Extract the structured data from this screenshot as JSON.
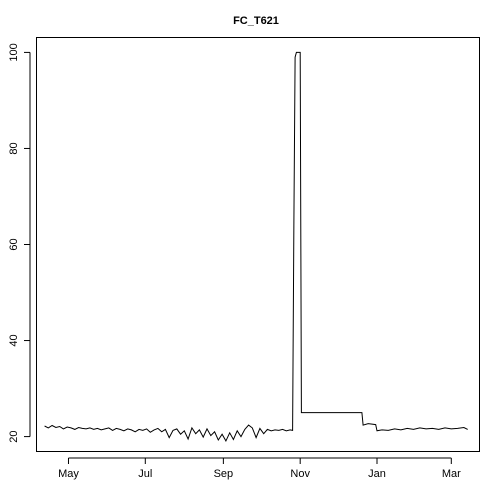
{
  "chart_data": {
    "type": "line",
    "title": "FC_T621",
    "xlabel": "",
    "ylabel": "",
    "x_type": "date",
    "xlim": [
      "2012-04-06",
      "2013-03-23"
    ],
    "ylim": [
      17.0,
      103.0
    ],
    "x_ticks": [
      {
        "date": "2012-05-01",
        "label": "May"
      },
      {
        "date": "2012-07-01",
        "label": "Jul"
      },
      {
        "date": "2012-09-01",
        "label": "Sep"
      },
      {
        "date": "2012-11-01",
        "label": "Nov"
      },
      {
        "date": "2013-01-01",
        "label": "Jan"
      },
      {
        "date": "2013-03-01",
        "label": "Mar"
      }
    ],
    "y_ticks": [
      20,
      40,
      60,
      80,
      100
    ],
    "grid": false,
    "legend": "none",
    "line_color": "#000000",
    "series": [
      {
        "x": [
          "2012-04-12",
          "2012-04-15",
          "2012-04-18",
          "2012-04-21",
          "2012-04-24",
          "2012-04-27",
          "2012-04-30",
          "2012-05-03",
          "2012-05-06",
          "2012-05-09",
          "2012-05-12",
          "2012-05-15",
          "2012-05-18",
          "2012-05-21",
          "2012-05-24",
          "2012-05-27",
          "2012-05-30",
          "2012-06-02",
          "2012-06-05",
          "2012-06-08",
          "2012-06-11",
          "2012-06-14",
          "2012-06-17",
          "2012-06-20",
          "2012-06-23",
          "2012-06-26",
          "2012-06-29",
          "2012-07-02",
          "2012-07-05",
          "2012-07-08",
          "2012-07-11",
          "2012-07-14",
          "2012-07-17",
          "2012-07-20",
          "2012-07-23",
          "2012-07-26",
          "2012-07-29",
          "2012-08-01",
          "2012-08-04",
          "2012-08-07",
          "2012-08-10",
          "2012-08-13",
          "2012-08-16",
          "2012-08-19",
          "2012-08-22",
          "2012-08-25",
          "2012-08-28",
          "2012-08-31",
          "2012-09-03",
          "2012-09-06",
          "2012-09-09",
          "2012-09-12",
          "2012-09-15",
          "2012-09-18",
          "2012-09-21",
          "2012-09-24",
          "2012-09-27",
          "2012-09-30",
          "2012-10-03",
          "2012-10-06",
          "2012-10-09",
          "2012-10-12",
          "2012-10-15",
          "2012-10-18",
          "2012-10-21",
          "2012-10-24",
          "2012-10-26",
          "2012-10-27",
          "2012-10-28",
          "2012-10-29",
          "2012-10-30",
          "2012-11-01",
          "2012-11-02",
          "2012-11-20",
          "2012-12-10",
          "2012-12-20",
          "2012-12-21",
          "2012-12-25",
          "2012-12-31",
          "2013-01-01",
          "2013-01-05",
          "2013-01-10",
          "2013-01-15",
          "2013-01-20",
          "2013-01-25",
          "2013-01-30",
          "2013-02-04",
          "2013-02-09",
          "2013-02-14",
          "2013-02-19",
          "2013-02-24",
          "2013-03-01",
          "2013-03-06",
          "2013-03-11",
          "2013-03-14"
        ],
        "y": [
          22.2,
          21.8,
          22.3,
          21.9,
          22.1,
          21.6,
          22.0,
          21.8,
          21.5,
          21.9,
          21.7,
          21.6,
          21.8,
          21.5,
          21.7,
          21.4,
          21.6,
          21.8,
          21.3,
          21.7,
          21.5,
          21.2,
          21.6,
          21.4,
          21.0,
          21.5,
          21.3,
          21.6,
          20.9,
          21.4,
          21.7,
          21.0,
          21.5,
          19.8,
          21.3,
          21.6,
          20.5,
          21.2,
          19.5,
          21.8,
          20.6,
          21.4,
          19.9,
          21.6,
          20.2,
          21.0,
          19.3,
          20.5,
          19.1,
          20.8,
          19.4,
          21.2,
          20.0,
          21.5,
          22.4,
          21.8,
          19.8,
          21.7,
          20.6,
          21.5,
          21.2,
          21.4,
          21.3,
          21.5,
          21.2,
          21.4,
          21.3,
          65.0,
          99.0,
          100.0,
          100.0,
          100.0,
          25.0,
          25.0,
          25.0,
          25.0,
          22.4,
          22.7,
          22.5,
          21.2,
          21.4,
          21.3,
          21.6,
          21.4,
          21.7,
          21.5,
          21.8,
          21.6,
          21.7,
          21.5,
          21.8,
          21.6,
          21.7,
          21.9,
          21.5
        ]
      }
    ]
  }
}
